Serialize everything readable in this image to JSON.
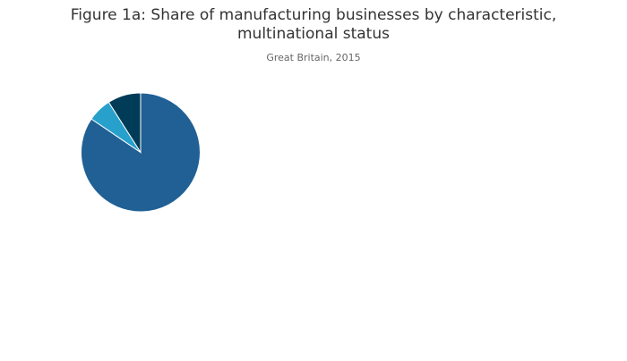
{
  "chart_data": {
    "type": "pie",
    "title_line1": "Figure 1a: Share of manufacturing businesses by characteristic,",
    "title_line2": "multinational status",
    "subtitle": "Great Britain, 2015",
    "slices": [
      {
        "value": 84.5,
        "color": "#206095"
      },
      {
        "value": 6.5,
        "color": "#27a0cc"
      },
      {
        "value": 9.0,
        "color": "#003c57"
      }
    ]
  }
}
